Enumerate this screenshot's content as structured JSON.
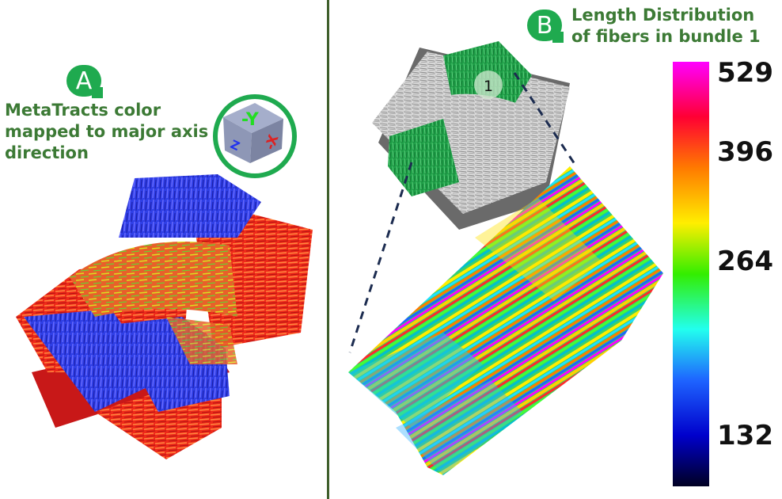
{
  "panel_a": {
    "badge": "A",
    "caption_lines": [
      "MetaTracts color",
      "mapped to major axis",
      "direction"
    ],
    "axis_cube_labels": {
      "y": "-Y",
      "x": "-X",
      "z": "Z"
    }
  },
  "panel_b": {
    "badge": "B",
    "caption_lines": [
      "Length Distribution",
      "of fibers in bundle 1"
    ],
    "bundle_marker": "1"
  },
  "colorbar": {
    "tick_labels": [
      "529",
      "396",
      "264",
      "132"
    ],
    "colors": [
      "#ff00ff",
      "#ff0033",
      "#ff7a00",
      "#ffee00",
      "#33ee00",
      "#22ffee",
      "#1e64ff",
      "#0000cc",
      "#000022"
    ]
  },
  "colors": {
    "badge_green": "#1faa4f",
    "caption_green": "#3c7a35",
    "bundle_green": "#1f9f48",
    "fiber_blue": "#2f3fe6",
    "fiber_red": "#ee2a1a",
    "divider": "#3f5f2c"
  }
}
